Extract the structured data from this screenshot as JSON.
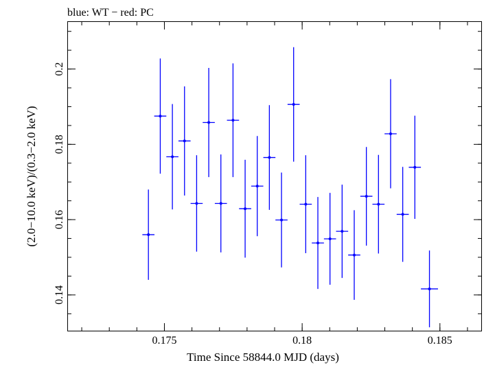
{
  "chart_data": {
    "type": "scatter",
    "title": "blue: WT − red: PC",
    "xlabel": "Time Since 58844.0 MJD (days)",
    "ylabel": "(2.0−10.0 keV)/(0.3−2.0 keV)",
    "xlim": [
      0.1715,
      0.1865
    ],
    "ylim": [
      0.1305,
      0.2125
    ],
    "x_ticks": [
      {
        "value": 0.175,
        "label": "0.175"
      },
      {
        "value": 0.18,
        "label": "0.18"
      },
      {
        "value": 0.185,
        "label": "0.185"
      }
    ],
    "y_ticks": [
      {
        "value": 0.14,
        "label": "0.14"
      },
      {
        "value": 0.16,
        "label": "0.16"
      },
      {
        "value": 0.18,
        "label": "0.18"
      },
      {
        "value": 0.2,
        "label": "0.2"
      }
    ],
    "x_minor_step": 0.001,
    "y_minor_step": 0.005,
    "grid": false,
    "series": [
      {
        "color": "#0000ff",
        "points": [
          {
            "x": 0.17442,
            "y": 0.156,
            "xerr": 0.00022,
            "yerr": 0.012
          },
          {
            "x": 0.17485,
            "y": 0.1875,
            "xerr": 0.00022,
            "yerr": 0.0153
          },
          {
            "x": 0.17529,
            "y": 0.1767,
            "xerr": 0.00022,
            "yerr": 0.014
          },
          {
            "x": 0.17573,
            "y": 0.1809,
            "xerr": 0.00022,
            "yerr": 0.0145
          },
          {
            "x": 0.17617,
            "y": 0.1643,
            "xerr": 0.00022,
            "yerr": 0.0128
          },
          {
            "x": 0.17661,
            "y": 0.1858,
            "xerr": 0.00022,
            "yerr": 0.0145
          },
          {
            "x": 0.17705,
            "y": 0.1643,
            "xerr": 0.00022,
            "yerr": 0.013
          },
          {
            "x": 0.17749,
            "y": 0.1864,
            "xerr": 0.00022,
            "yerr": 0.0151
          },
          {
            "x": 0.17793,
            "y": 0.1629,
            "xerr": 0.00022,
            "yerr": 0.013
          },
          {
            "x": 0.17837,
            "y": 0.1689,
            "xerr": 0.00022,
            "yerr": 0.0133
          },
          {
            "x": 0.17881,
            "y": 0.1765,
            "xerr": 0.00022,
            "yerr": 0.0139
          },
          {
            "x": 0.17925,
            "y": 0.1599,
            "xerr": 0.00022,
            "yerr": 0.0126
          },
          {
            "x": 0.17969,
            "y": 0.1906,
            "xerr": 0.00022,
            "yerr": 0.0152
          },
          {
            "x": 0.18013,
            "y": 0.1641,
            "xerr": 0.00022,
            "yerr": 0.013
          },
          {
            "x": 0.18057,
            "y": 0.1538,
            "xerr": 0.00022,
            "yerr": 0.0122
          },
          {
            "x": 0.18101,
            "y": 0.1549,
            "xerr": 0.00022,
            "yerr": 0.0122
          },
          {
            "x": 0.18145,
            "y": 0.1569,
            "xerr": 0.00022,
            "yerr": 0.0124
          },
          {
            "x": 0.18189,
            "y": 0.1506,
            "xerr": 0.00022,
            "yerr": 0.0119
          },
          {
            "x": 0.18233,
            "y": 0.1662,
            "xerr": 0.00022,
            "yerr": 0.0131
          },
          {
            "x": 0.18277,
            "y": 0.1641,
            "xerr": 0.00022,
            "yerr": 0.0131
          },
          {
            "x": 0.18321,
            "y": 0.1828,
            "xerr": 0.00022,
            "yerr": 0.0145
          },
          {
            "x": 0.18365,
            "y": 0.1614,
            "xerr": 0.00022,
            "yerr": 0.0126
          },
          {
            "x": 0.18409,
            "y": 0.1739,
            "xerr": 0.00022,
            "yerr": 0.0137
          },
          {
            "x": 0.18462,
            "y": 0.1416,
            "xerr": 0.00031,
            "yerr": 0.0102
          }
        ]
      }
    ]
  }
}
